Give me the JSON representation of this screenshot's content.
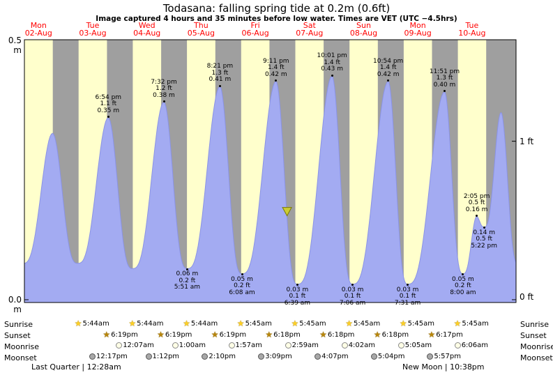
{
  "title": "Todasana: falling  spring tide at 0.2m (0.6ft)",
  "subtitle": "Image captured 4 hours and 35 minutes before low water. Times are VET (UTC −4.5hrs)",
  "axis": {
    "left_top": "0.5 m",
    "left_bottom": "0.0 m",
    "right_top": "1 ft",
    "right_bottom": "0 ft"
  },
  "days": [
    {
      "name": "Mon",
      "date": "02-Aug"
    },
    {
      "name": "Tue",
      "date": "03-Aug"
    },
    {
      "name": "Wed",
      "date": "04-Aug"
    },
    {
      "name": "Thu",
      "date": "05-Aug"
    },
    {
      "name": "Fri",
      "date": "06-Aug"
    },
    {
      "name": "Sat",
      "date": "07-Aug"
    },
    {
      "name": "Sun",
      "date": "08-Aug"
    },
    {
      "name": "Mon",
      "date": "09-Aug"
    },
    {
      "name": "Tue",
      "date": "10-Aug"
    }
  ],
  "colors": {
    "night_band": "#9f9f9f",
    "day_band": "#ffffcc",
    "tide_fill": "#a3abf2",
    "tide_edge": "#8a93e6",
    "day_label": "#ff0000",
    "marker_fill": "#cccc33",
    "marker_edge": "#7a7a00",
    "sunrise_star": "#ffd024",
    "sunset_star": "#b8860b",
    "moonrise_fill": "#ffffe6",
    "moonset_fill": "#a8a8a8"
  },
  "chart_data": {
    "type": "area",
    "x_unit": "hours_from_Mon_02_Aug_midnight",
    "ylim_m": [
      0,
      0.5
    ],
    "ylim_ft": [
      0,
      1.6
    ],
    "daylight": [
      [
        5.733,
        18.317
      ],
      [
        5.733,
        18.317
      ],
      [
        5.733,
        18.317
      ],
      [
        5.75,
        18.317
      ],
      [
        5.75,
        18.3
      ],
      [
        5.75,
        18.3
      ],
      [
        5.75,
        18.3
      ],
      [
        5.75,
        18.283
      ],
      [
        5.75,
        18.283
      ]
    ],
    "curve_keypoints": [
      [
        5.1,
        0.07
      ],
      [
        18.2,
        0.32
      ],
      [
        29.33,
        0.07
      ],
      [
        42.9,
        0.35
      ],
      [
        53.6,
        0.06
      ],
      [
        67.53,
        0.38
      ],
      [
        77.85,
        0.06
      ],
      [
        92.35,
        0.41
      ],
      [
        102.13,
        0.05
      ],
      [
        117.18,
        0.42
      ],
      [
        126.65,
        0.03
      ],
      [
        142.02,
        0.43
      ],
      [
        151.1,
        0.03
      ],
      [
        166.9,
        0.42
      ],
      [
        175.52,
        0.03
      ],
      [
        191.85,
        0.4
      ],
      [
        200.0,
        0.05
      ],
      [
        206.08,
        0.16
      ],
      [
        209.37,
        0.14
      ],
      [
        216.85,
        0.36
      ],
      [
        224.4,
        0.07
      ]
    ],
    "highs": [
      {
        "day": 1,
        "hours": 18.9,
        "time": "6:54 pm",
        "ft": "1.1 ft",
        "m": "0.35 m",
        "value": 0.35
      },
      {
        "day": 2,
        "hours": 19.53,
        "time": "7:32 pm",
        "ft": "1.2 ft",
        "m": "0.38 m",
        "value": 0.38
      },
      {
        "day": 3,
        "hours": 20.35,
        "time": "8:21 pm",
        "ft": "1.3 ft",
        "m": "0.41 m",
        "value": 0.41
      },
      {
        "day": 4,
        "hours": 21.18,
        "time": "9:11 pm",
        "ft": "1.4 ft",
        "m": "0.42 m",
        "value": 0.42
      },
      {
        "day": 5,
        "hours": 22.02,
        "time": "10:01 pm",
        "ft": "1.4 ft",
        "m": "0.43 m",
        "value": 0.43
      },
      {
        "day": 6,
        "hours": 22.9,
        "time": "10:54 pm",
        "ft": "1.4 ft",
        "m": "0.42 m",
        "value": 0.42
      },
      {
        "day": 7,
        "hours": 23.85,
        "time": "11:51 pm",
        "ft": "1.3 ft",
        "m": "0.40 m",
        "value": 0.4
      },
      {
        "day": 8,
        "hours": 14.08,
        "time": "2:05 pm",
        "ft": "0.5 ft",
        "m": "0.16 m",
        "value": 0.16
      }
    ],
    "lows": [
      {
        "day": 3,
        "hours": 5.85,
        "time": "5:51 am",
        "ft": "0.2 ft",
        "m": "0.06 m",
        "value": 0.06
      },
      {
        "day": 4,
        "hours": 6.13,
        "time": "6:08 am",
        "ft": "0.2 ft",
        "m": "0.05 m",
        "value": 0.05
      },
      {
        "day": 5,
        "hours": 6.65,
        "time": "6:39 am",
        "ft": "0.1 ft",
        "m": "0.03 m",
        "value": 0.03
      },
      {
        "day": 6,
        "hours": 7.1,
        "time": "7:06 am",
        "ft": "0.1 ft",
        "m": "0.03 m",
        "value": 0.03
      },
      {
        "day": 7,
        "hours": 7.52,
        "time": "7:31 am",
        "ft": "0.1 ft",
        "m": "0.03 m",
        "value": 0.03
      },
      {
        "day": 8,
        "hours": 8.0,
        "time": "8:00 am",
        "ft": "0.2 ft",
        "m": "0.05 m",
        "value": 0.05
      },
      {
        "day": 8,
        "hours": 17.37,
        "time": "5:22 pm",
        "ft": "0.5 ft",
        "m": "0.14 m",
        "value": 0.14
      }
    ],
    "current_marker": {
      "hours_abs": 122.07
    }
  },
  "astro": {
    "row_labels": [
      "Sunrise",
      "Sunset",
      "Moonrise",
      "Moonset"
    ],
    "sunrise": [
      {
        "day": 1,
        "hours": 5.733,
        "time": "5:44am"
      },
      {
        "day": 2,
        "hours": 5.733,
        "time": "5:44am"
      },
      {
        "day": 3,
        "hours": 5.733,
        "time": "5:44am"
      },
      {
        "day": 4,
        "hours": 5.75,
        "time": "5:45am"
      },
      {
        "day": 5,
        "hours": 5.75,
        "time": "5:45am"
      },
      {
        "day": 6,
        "hours": 5.75,
        "time": "5:45am"
      },
      {
        "day": 7,
        "hours": 5.75,
        "time": "5:45am"
      },
      {
        "day": 8,
        "hours": 5.75,
        "time": "5:45am"
      }
    ],
    "sunset": [
      {
        "day": 1,
        "hours": 18.317,
        "time": "6:19pm"
      },
      {
        "day": 2,
        "hours": 18.317,
        "time": "6:19pm"
      },
      {
        "day": 3,
        "hours": 18.317,
        "time": "6:19pm"
      },
      {
        "day": 4,
        "hours": 18.3,
        "time": "6:18pm"
      },
      {
        "day": 5,
        "hours": 18.3,
        "time": "6:18pm"
      },
      {
        "day": 6,
        "hours": 18.3,
        "time": "6:18pm"
      },
      {
        "day": 7,
        "hours": 18.283,
        "time": "6:17pm"
      }
    ],
    "moonrise": [
      {
        "day": 2,
        "hours": 0.117,
        "time": "12:07am"
      },
      {
        "day": 3,
        "hours": 1.0,
        "time": "1:00am"
      },
      {
        "day": 4,
        "hours": 1.95,
        "time": "1:57am"
      },
      {
        "day": 5,
        "hours": 2.983,
        "time": "2:59am"
      },
      {
        "day": 6,
        "hours": 4.033,
        "time": "4:02am"
      },
      {
        "day": 7,
        "hours": 5.083,
        "time": "5:05am"
      },
      {
        "day": 8,
        "hours": 6.1,
        "time": "6:06am"
      }
    ],
    "moonset": [
      {
        "day": 1,
        "hours": 12.283,
        "time": "12:17pm"
      },
      {
        "day": 2,
        "hours": 13.2,
        "time": "1:12pm"
      },
      {
        "day": 3,
        "hours": 14.167,
        "time": "2:10pm"
      },
      {
        "day": 4,
        "hours": 15.15,
        "time": "3:09pm"
      },
      {
        "day": 5,
        "hours": 16.117,
        "time": "4:07pm"
      },
      {
        "day": 6,
        "hours": 17.067,
        "time": "5:04pm"
      },
      {
        "day": 7,
        "hours": 17.95,
        "time": "5:57pm"
      }
    ]
  },
  "footer": {
    "left": "Last Quarter | 12:28am",
    "right": "New Moon | 10:38pm"
  }
}
